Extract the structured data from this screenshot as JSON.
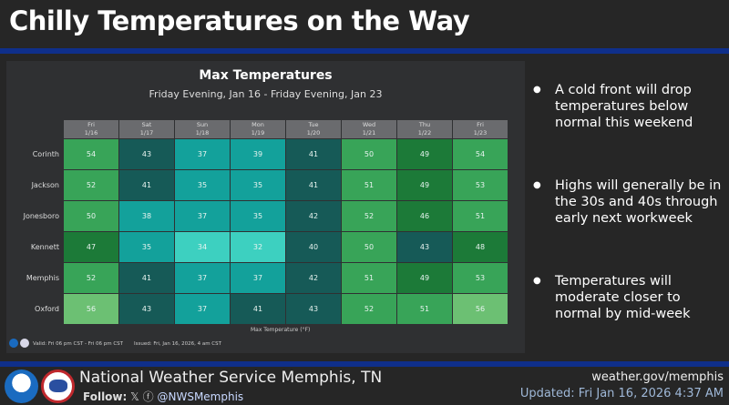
{
  "header": {
    "title": "Chilly Temperatures on the Way"
  },
  "panel": {
    "title": "Max Temperatures",
    "subtitle": "Friday Evening, Jan 16 - Friday Evening, Jan 23",
    "legend": "Max Temperature (°F)",
    "valid": "Valid: Fri 06 pm CST - Fri 06 pm CST",
    "issued": "Issued: Fri, Jan 16, 2026, 4 am CST"
  },
  "chart_data": {
    "type": "heatmap",
    "title": "Max Temperatures",
    "subtitle": "Friday Evening, Jan 16 - Friday Evening, Jan 23",
    "colorbar_label": "Max Temperature (°F)",
    "columns": [
      {
        "day": "Fri",
        "date": "1/16"
      },
      {
        "day": "Sat",
        "date": "1/17"
      },
      {
        "day": "Sun",
        "date": "1/18"
      },
      {
        "day": "Mon",
        "date": "1/19"
      },
      {
        "day": "Tue",
        "date": "1/20"
      },
      {
        "day": "Wed",
        "date": "1/21"
      },
      {
        "day": "Thu",
        "date": "1/22"
      },
      {
        "day": "Fri",
        "date": "1/23"
      }
    ],
    "rows": [
      {
        "name": "Corinth",
        "values": [
          54,
          43,
          37,
          39,
          41,
          50,
          49,
          54
        ]
      },
      {
        "name": "Jackson",
        "values": [
          52,
          41,
          35,
          35,
          41,
          51,
          49,
          53
        ]
      },
      {
        "name": "Jonesboro",
        "values": [
          50,
          38,
          37,
          35,
          42,
          52,
          46,
          51
        ]
      },
      {
        "name": "Kennett",
        "values": [
          47,
          35,
          34,
          32,
          40,
          50,
          43,
          48
        ]
      },
      {
        "name": "Memphis",
        "values": [
          52,
          41,
          37,
          37,
          42,
          51,
          49,
          53
        ]
      },
      {
        "name": "Oxford",
        "values": [
          56,
          43,
          37,
          41,
          43,
          52,
          51,
          56
        ]
      }
    ]
  },
  "bullets": [
    "A cold front will drop temperatures below normal this weekend",
    "Highs will generally be in the 30s and 40s through early next workweek",
    "Temperatures will moderate closer to normal by mid-week"
  ],
  "footer": {
    "office": "National Weather Service Memphis, TN",
    "follow_label": "Follow:",
    "handle": "@NWSMemphis",
    "site": "weather.gov/memphis",
    "updated": "Updated: Fri Jan 16, 2026 4:37 AM"
  },
  "colors": {
    "accent_bar": "#0f2f8a"
  }
}
